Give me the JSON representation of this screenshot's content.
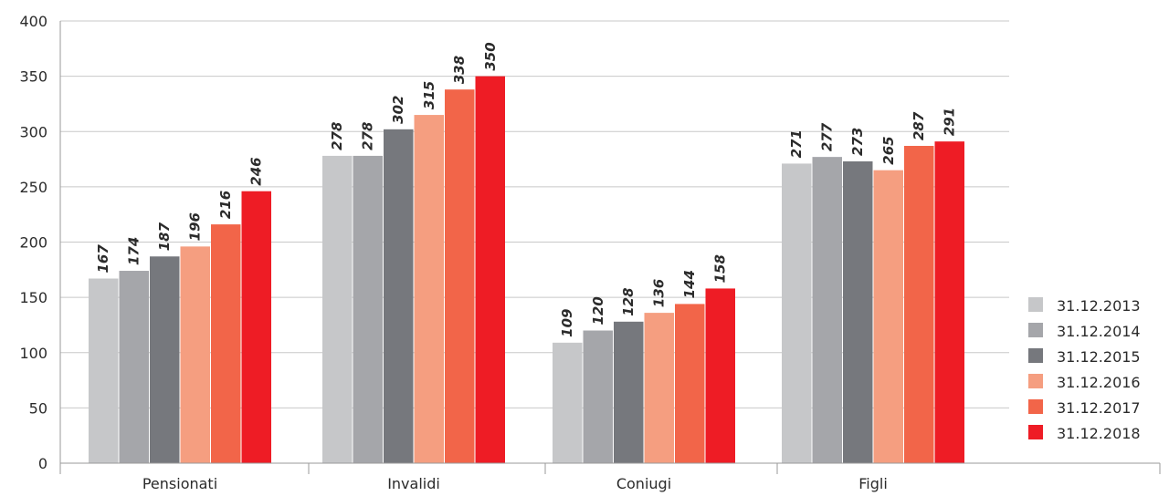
{
  "chart_data": {
    "type": "bar",
    "categories": [
      "Pensionati",
      "Invalidi",
      "Coniugi",
      "Figli"
    ],
    "series": [
      {
        "name": "31.12.2013",
        "color": "#c6c7c9",
        "values": [
          167,
          278,
          109,
          271
        ]
      },
      {
        "name": "31.12.2014",
        "color": "#a5a6aa",
        "values": [
          174,
          278,
          120,
          277
        ]
      },
      {
        "name": "31.12.2015",
        "color": "#76787d",
        "values": [
          187,
          302,
          128,
          273
        ]
      },
      {
        "name": "31.12.2016",
        "color": "#f59e80",
        "values": [
          196,
          315,
          136,
          265
        ]
      },
      {
        "name": "31.12.2017",
        "color": "#f26549",
        "values": [
          216,
          338,
          144,
          287
        ]
      },
      {
        "name": "31.12.2018",
        "color": "#ee1c25",
        "values": [
          246,
          350,
          158,
          291
        ]
      }
    ],
    "ylim": [
      0,
      400
    ],
    "yticks": [
      0,
      50,
      100,
      150,
      200,
      250,
      300,
      350,
      400
    ],
    "grid": true,
    "legend_position": "right",
    "title": "",
    "xlabel": "",
    "ylabel": ""
  }
}
